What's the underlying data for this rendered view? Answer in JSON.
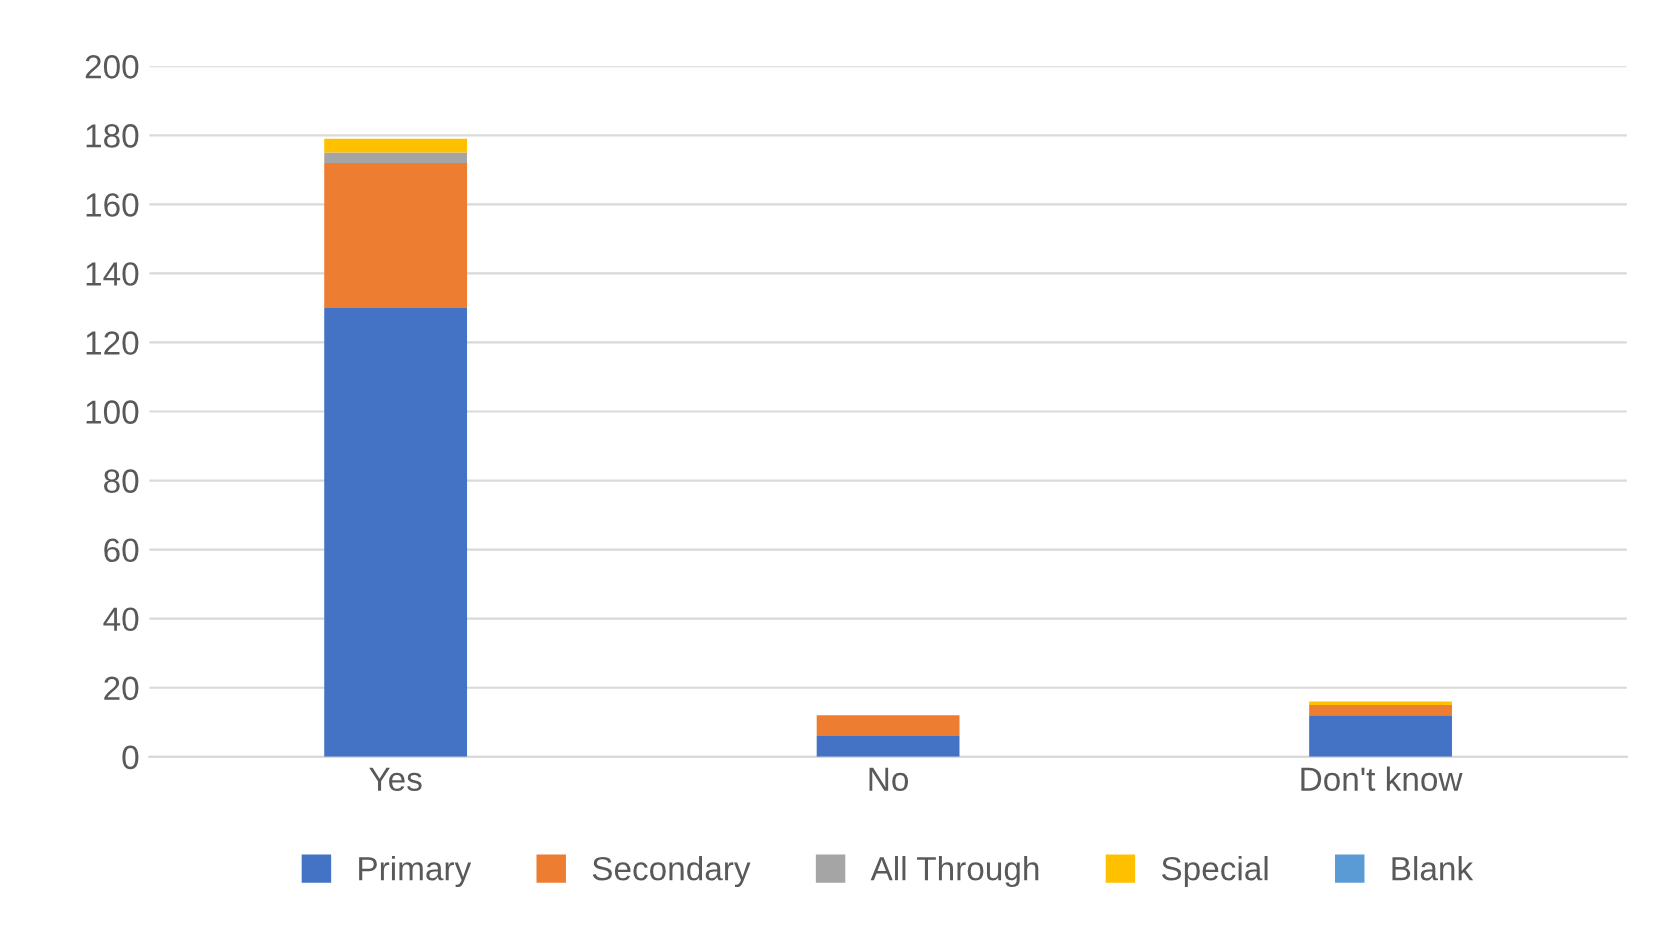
{
  "chart_data": {
    "type": "bar",
    "stacked": true,
    "categories": [
      "Yes",
      "No",
      "Don't know"
    ],
    "series": [
      {
        "name": "Primary",
        "color": "#4472c4",
        "values": [
          130,
          6,
          12
        ]
      },
      {
        "name": "Secondary",
        "color": "#ed7d31",
        "values": [
          42,
          6,
          3
        ]
      },
      {
        "name": "All Through",
        "color": "#a5a5a5",
        "values": [
          3,
          0,
          0
        ]
      },
      {
        "name": "Special",
        "color": "#ffc000",
        "values": [
          4,
          0,
          1
        ]
      },
      {
        "name": "Blank",
        "color": "#5b9bd5",
        "values": [
          0,
          0,
          0
        ]
      }
    ],
    "ylim": [
      0,
      200
    ],
    "yticks": [
      0,
      20,
      40,
      60,
      80,
      100,
      120,
      140,
      160,
      180,
      200
    ],
    "grid": "y",
    "legend": "bottom"
  }
}
